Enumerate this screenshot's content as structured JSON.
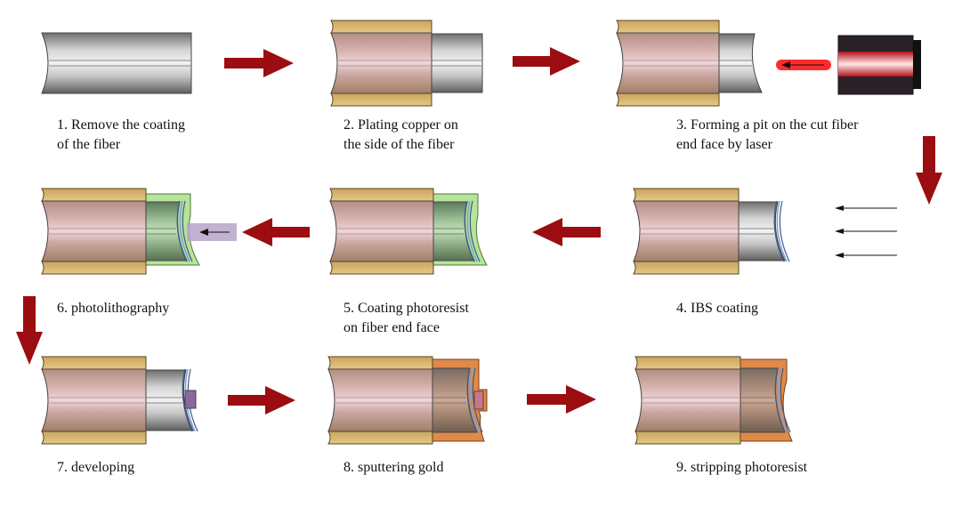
{
  "steps": [
    {
      "number": "1",
      "lines": [
        "1. Remove the coating",
        "of the fiber"
      ]
    },
    {
      "number": "2",
      "lines": [
        "2. Plating copper on",
        "the side of the fiber"
      ]
    },
    {
      "number": "3",
      "lines": [
        "3. Forming a pit on the cut fiber",
        "end face by laser"
      ]
    },
    {
      "number": "4",
      "lines": [
        "4. IBS coating"
      ]
    },
    {
      "number": "5",
      "lines": [
        "5. Coating photoresist",
        "on fiber end face"
      ]
    },
    {
      "number": "6",
      "lines": [
        "6. photolithography"
      ]
    },
    {
      "number": "7",
      "lines": [
        "7. developing"
      ]
    },
    {
      "number": "8",
      "lines": [
        "8. sputtering gold"
      ]
    },
    {
      "number": "9",
      "lines": [
        "9. stripping photoresist"
      ]
    }
  ],
  "colors": {
    "flow_arrow": "#9b0d10",
    "copper_plating": "#d9b872",
    "fiber_core": "#d4aeaa",
    "bare_fiber": "#9a9a9a",
    "photoresist": "#b7e39a",
    "gold": "#e08a4a",
    "ibs_film": "#5b79a8",
    "laser_beam": "#ff2b2b",
    "laser_body": "#2a2228",
    "exposure_light": "#b9a3c9"
  },
  "icons": [
    "flow-arrow-icon",
    "laser-icon",
    "ion-beam-arrows-icon",
    "uv-light-icon"
  ]
}
